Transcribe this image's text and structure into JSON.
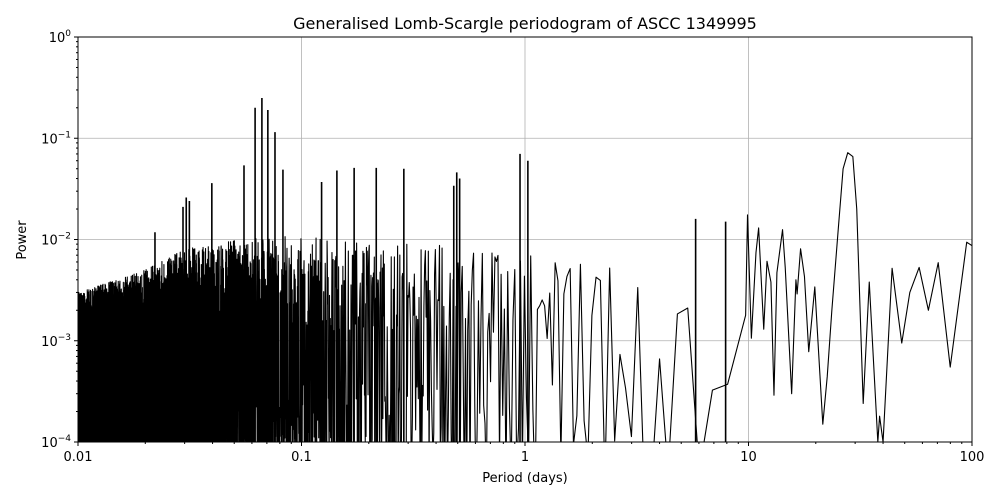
{
  "chart_data": {
    "type": "line",
    "title": "Generalised Lomb-Scargle periodogram of ASCC 1349995",
    "xlabel": "Period (days)",
    "ylabel": "Power",
    "xscale": "log",
    "yscale": "log",
    "xlim": [
      0.01,
      100
    ],
    "ylim": [
      0.0001,
      1
    ],
    "grid": true,
    "line_color": "#000000",
    "grid_color": "#b0b0b0",
    "x_tick_labels": [
      "0.01",
      "0.1",
      "1",
      "10",
      "100"
    ],
    "y_tick_labels": [
      {
        "base": "10",
        "exp": "−4"
      },
      {
        "base": "10",
        "exp": "−3"
      },
      {
        "base": "10",
        "exp": "−2"
      },
      {
        "base": "10",
        "exp": "−1"
      },
      {
        "base": "10",
        "exp": "0"
      }
    ],
    "dense_envelope": [
      [
        0.01,
        0.003
      ],
      [
        0.02,
        0.005
      ],
      [
        0.03,
        0.008
      ],
      [
        0.05,
        0.01
      ],
      [
        0.1,
        0.011
      ],
      [
        0.2,
        0.009
      ],
      [
        0.5,
        0.01
      ],
      [
        1,
        0.009
      ],
      [
        2,
        0.006
      ],
      [
        4,
        0.005
      ],
      [
        6,
        0.007
      ],
      [
        9.5,
        0.01
      ]
    ],
    "peaks": [
      [
        0.0221,
        0.0118
      ],
      [
        0.0295,
        0.021
      ],
      [
        0.0305,
        0.026
      ],
      [
        0.0315,
        0.024
      ],
      [
        0.0397,
        0.036
      ],
      [
        0.0553,
        0.054
      ],
      [
        0.062,
        0.2
      ],
      [
        0.0665,
        0.25
      ],
      [
        0.0707,
        0.19
      ],
      [
        0.0761,
        0.115
      ],
      [
        0.0826,
        0.049
      ],
      [
        0.123,
        0.037
      ],
      [
        0.144,
        0.048
      ],
      [
        0.172,
        0.051
      ],
      [
        0.216,
        0.051
      ],
      [
        0.287,
        0.05
      ],
      [
        0.48,
        0.034
      ],
      [
        0.495,
        0.046
      ],
      [
        0.51,
        0.04
      ],
      [
        0.95,
        0.07
      ],
      [
        1.03,
        0.06
      ],
      [
        5.8,
        0.016
      ],
      [
        7.9,
        0.015
      ]
    ],
    "smooth_tail": [
      [
        9.9,
        0.0175
      ],
      [
        10.3,
        0.00106
      ],
      [
        10.8,
        0.0074
      ],
      [
        11.1,
        0.013
      ],
      [
        11.7,
        0.0013
      ],
      [
        12.1,
        0.0061
      ],
      [
        12.6,
        0.0038
      ],
      [
        13.0,
        0.00029
      ],
      [
        13.4,
        0.0047
      ],
      [
        14.2,
        0.0125
      ],
      [
        14.6,
        0.0053
      ],
      [
        15.6,
        0.0003
      ],
      [
        16.3,
        0.004
      ],
      [
        16.5,
        0.0029
      ],
      [
        17.1,
        0.0081
      ],
      [
        17.8,
        0.0043
      ],
      [
        18.6,
        0.00078
      ],
      [
        19.8,
        0.0034
      ],
      [
        21.5,
        0.00015
      ],
      [
        22.5,
        0.00044
      ],
      [
        23.6,
        0.002
      ],
      [
        25.2,
        0.0125
      ],
      [
        26.5,
        0.05
      ],
      [
        27.8,
        0.072
      ],
      [
        29.3,
        0.066
      ],
      [
        30.5,
        0.02
      ],
      [
        32.6,
        0.00024
      ],
      [
        34.7,
        0.0038
      ],
      [
        37.9,
        0.0001
      ],
      [
        38.6,
        0.00018
      ],
      [
        40.0,
        0.0001
      ],
      [
        43.9,
        0.0052
      ],
      [
        48.5,
        0.00095
      ],
      [
        52.7,
        0.003
      ],
      [
        58.0,
        0.0053
      ],
      [
        63.8,
        0.002
      ],
      [
        70.6,
        0.0059
      ],
      [
        79.9,
        0.00055
      ],
      [
        94.7,
        0.0094
      ],
      [
        100,
        0.0087
      ]
    ]
  }
}
